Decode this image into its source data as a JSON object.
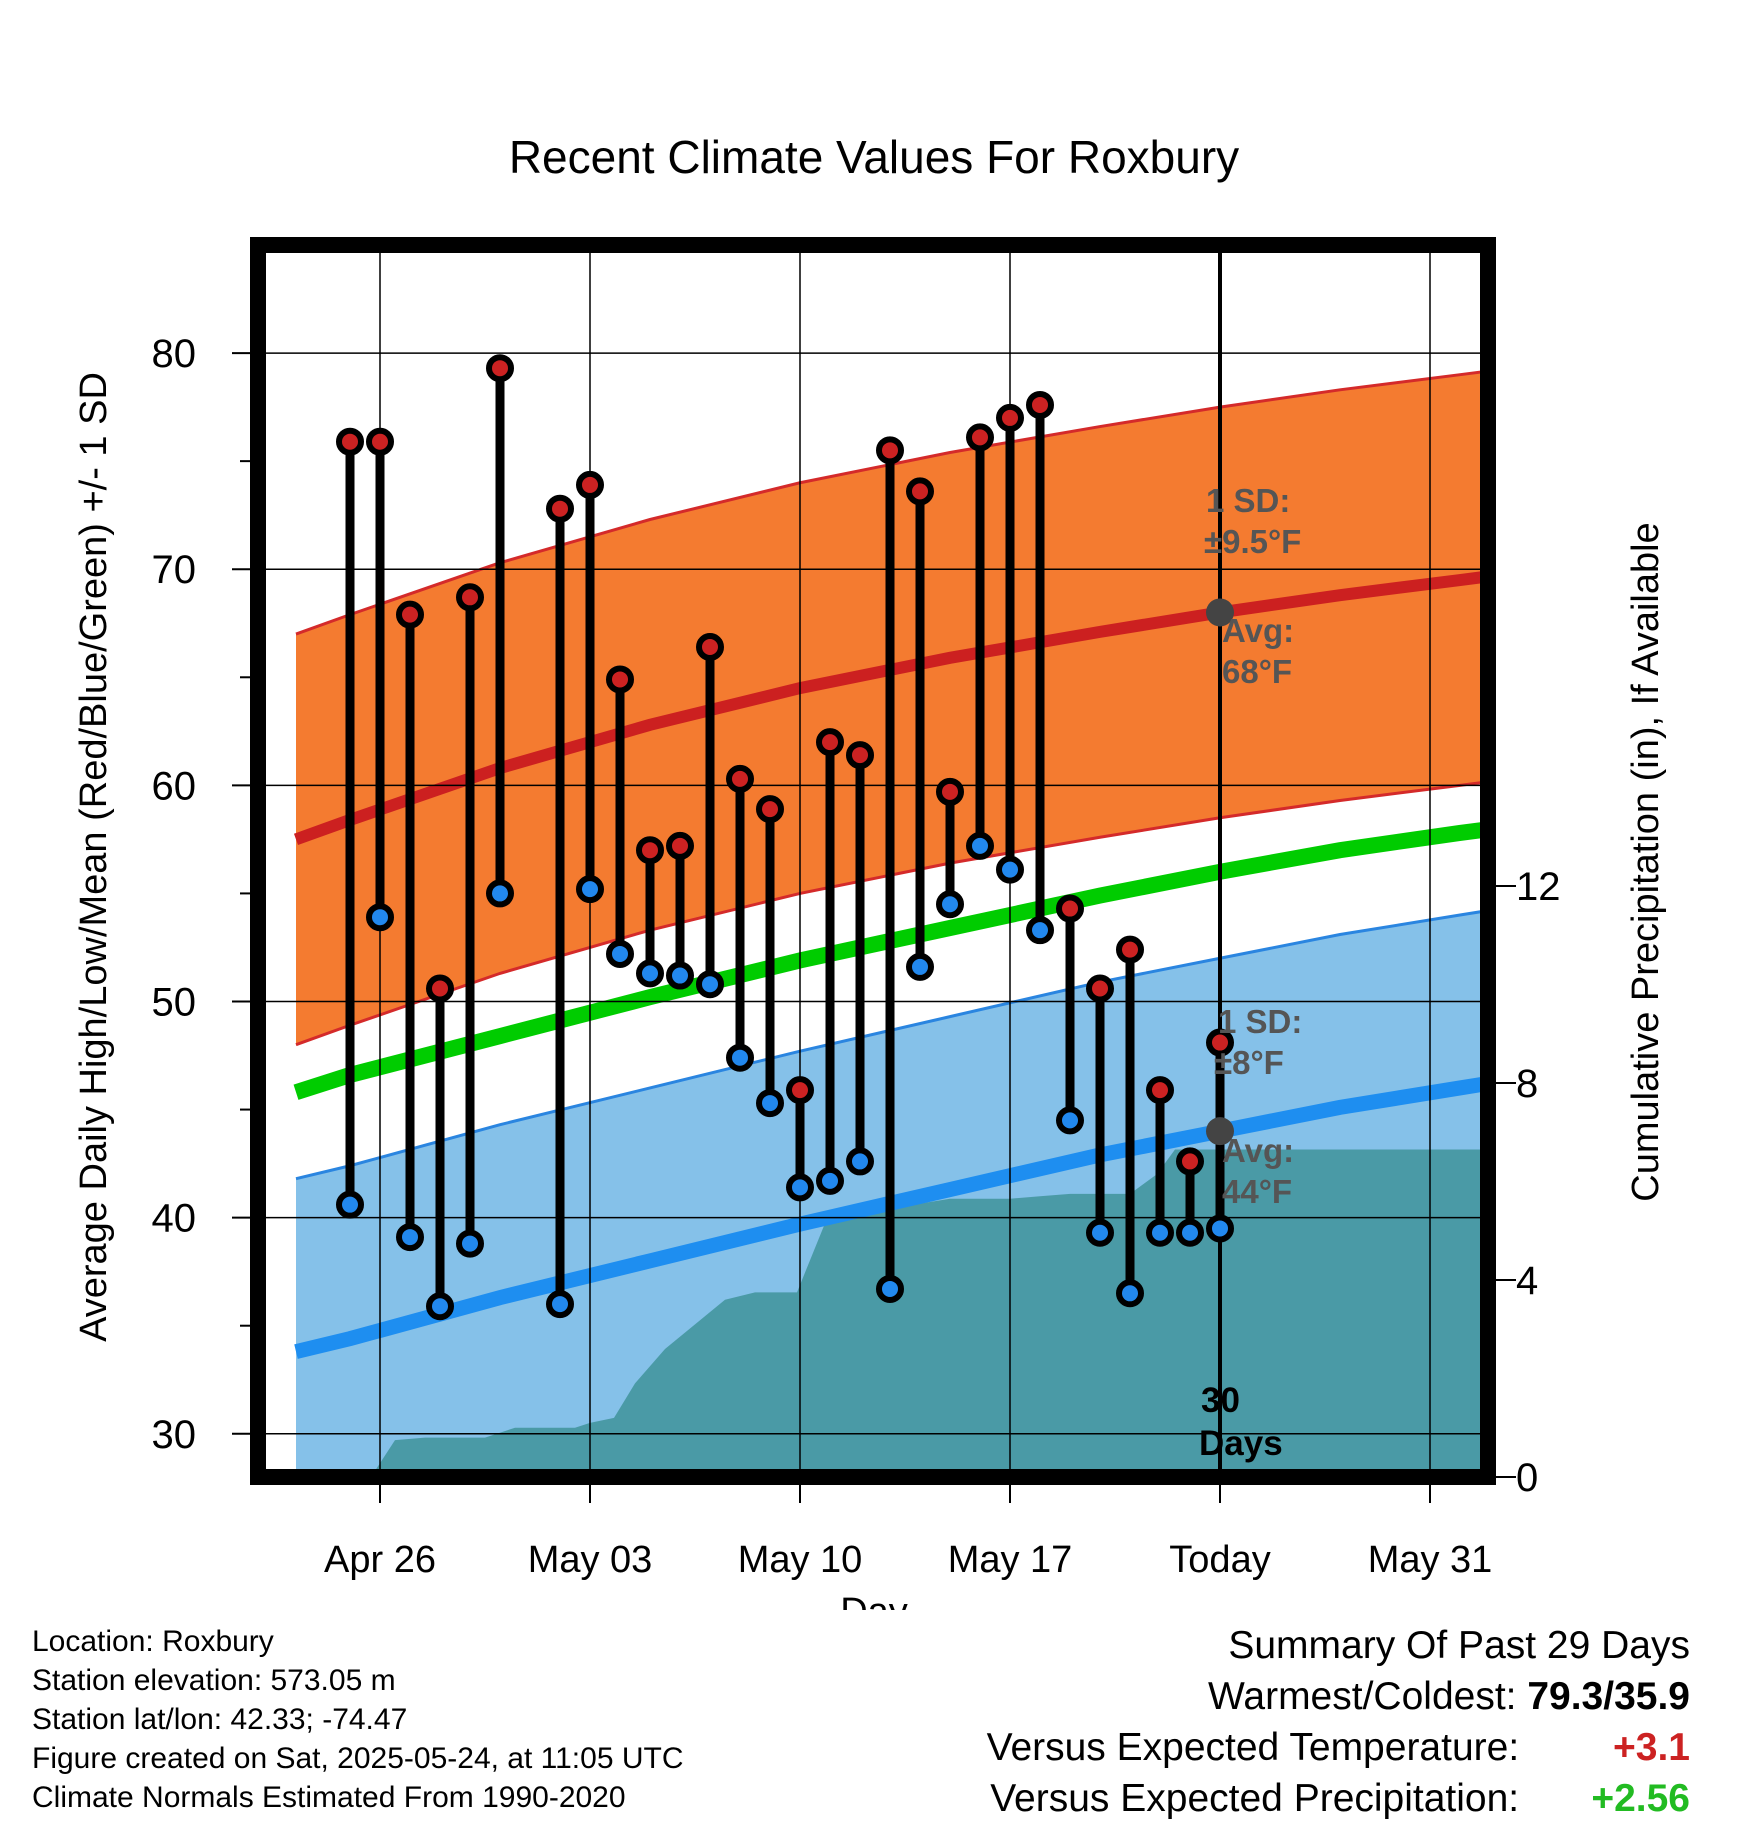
{
  "chart_data": {
    "type": "line",
    "title": "Recent Climate Values For Roxbury",
    "xlabel": "Day",
    "ylabel": "Average Daily High/Low/Mean (Red/Blue/Green) +/- 1 SD",
    "y2label": "Cumulative Precipitation (in), If Available",
    "ylim": [
      28,
      85
    ],
    "y2lim": [
      0,
      25
    ],
    "xlim": [
      -1.8,
      41.5
    ],
    "x_ticks": [
      {
        "x": 1,
        "label": "Apr 26"
      },
      {
        "x": 8,
        "label": "May 03"
      },
      {
        "x": 15,
        "label": "May 10"
      },
      {
        "x": 22,
        "label": "May 17"
      },
      {
        "x": 29,
        "label": "Today"
      },
      {
        "x": 36,
        "label": "May 31"
      }
    ],
    "y_ticks": [
      30,
      40,
      50,
      60,
      70,
      80
    ],
    "y2_ticks": [
      0,
      4,
      8,
      12
    ],
    "today_x": 29,
    "today_label": [
      "30",
      "Days"
    ],
    "normals": {
      "x": [
        -1.8,
        0,
        5,
        10,
        15,
        20,
        25,
        29,
        33,
        37,
        41.5
      ],
      "high_avg": [
        57.5,
        58.4,
        60.8,
        62.8,
        64.5,
        65.9,
        67.1,
        68.0,
        68.8,
        69.5,
        70.3
      ],
      "low_avg": [
        33.8,
        34.4,
        36.3,
        38.0,
        39.7,
        41.3,
        42.9,
        44.0,
        45.1,
        46.0,
        47.0
      ],
      "mean_avg": [
        45.8,
        46.6,
        48.4,
        50.2,
        51.9,
        53.4,
        54.9,
        56.0,
        57.0,
        57.8,
        58.6
      ],
      "high_sd": 9.5,
      "low_sd": 8.0
    },
    "annotations": {
      "high_sd_label": [
        "1 SD:",
        "±9.5°F"
      ],
      "high_avg_label": [
        "Avg:",
        "68°F"
      ],
      "low_sd_label": [
        "1 SD:",
        "±8°F"
      ],
      "low_avg_label": [
        "Avg:",
        "44°F"
      ]
    },
    "series": [
      {
        "name": "High",
        "color": "#cc2222",
        "x": [
          0,
          1,
          2,
          3,
          4,
          5,
          7,
          8,
          9,
          10,
          11,
          12,
          13,
          14,
          15,
          16,
          17,
          18,
          19,
          20,
          21,
          22,
          23,
          24,
          25,
          26,
          27,
          28
        ],
        "values": [
          75.9,
          75.9,
          67.9,
          50.6,
          68.7,
          79.3,
          72.8,
          73.9,
          64.9,
          57.0,
          57.2,
          66.4,
          60.3,
          58.9,
          45.9,
          62.0,
          61.4,
          75.5,
          73.6,
          59.7,
          76.1,
          77.0,
          77.6,
          54.3,
          50.6,
          52.4,
          45.9,
          42.6
        ]
      },
      {
        "name": "Low",
        "color": "#2288ee",
        "x": [
          0,
          1,
          2,
          3,
          4,
          5,
          7,
          8,
          9,
          10,
          11,
          12,
          13,
          14,
          15,
          16,
          17,
          18,
          19,
          20,
          21,
          22,
          23,
          24,
          25,
          26,
          27,
          28
        ],
        "values": [
          40.6,
          53.9,
          39.1,
          35.9,
          38.8,
          55.0,
          36.0,
          55.2,
          52.2,
          51.3,
          51.2,
          50.8,
          47.4,
          45.3,
          41.4,
          41.7,
          42.6,
          36.7,
          51.6,
          54.5,
          57.2,
          56.1,
          53.3,
          44.5,
          39.3,
          36.5,
          39.3,
          39.3
        ]
      }
    ],
    "extra_point": {
      "x": 29,
      "high": 48.1,
      "low": 39.5
    },
    "precip": {
      "color": "#4a9aa6",
      "x": [
        0.7,
        1.5,
        2.5,
        3.5,
        4.5,
        5.5,
        6.5,
        7.5,
        8.0,
        8.8,
        9.5,
        10.5,
        11.5,
        12.5,
        13.5,
        14.2,
        14.9,
        16,
        17,
        18,
        19,
        20,
        21,
        22,
        23,
        24,
        25,
        26,
        26.9,
        27.5,
        28.5,
        41.5
      ],
      "values": [
        0.0,
        0.75,
        0.8,
        0.8,
        0.8,
        1.0,
        1.0,
        1.0,
        1.1,
        1.2,
        1.9,
        2.6,
        3.1,
        3.6,
        3.75,
        3.75,
        3.75,
        5.4,
        5.4,
        5.45,
        5.55,
        5.65,
        5.65,
        5.65,
        5.7,
        5.75,
        5.75,
        5.75,
        6.15,
        6.65,
        6.65,
        6.65
      ]
    }
  },
  "footer": {
    "location": "Location: Roxbury",
    "elevation": "Station elevation: 573.05 m",
    "latlon": "Station lat/lon: 42.33; -74.47",
    "created": "Figure created on Sat, 2025-05-24, at 11:05 UTC",
    "normals": "Climate Normals Estimated From 1990-2020"
  },
  "summary": {
    "heading": "Summary Of Past 29 Days",
    "warm_cold_label": "Warmest/Coldest:",
    "warm_cold_value": "79.3/35.9",
    "temp_label": "Versus Expected Temperature:",
    "temp_value": "+3.1",
    "precip_label": "Versus Expected Precipitation:",
    "precip_value": "+2.56"
  }
}
